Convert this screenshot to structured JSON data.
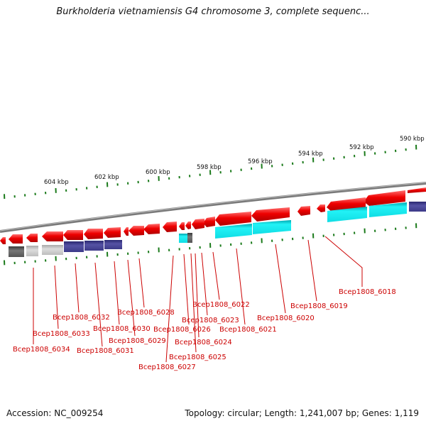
{
  "title": "Burkholderia vietnamiensis G4 chromosome 3, complete sequenc...",
  "footer": {
    "accession": "Accession: NC_009254",
    "stats": "Topology: circular; Length: 1,241,007 bp; Genes: 1,119"
  },
  "scale_labels": [
    "604 kbp",
    "602 kbp",
    "600 kbp",
    "598 kbp",
    "596 kbp",
    "594 kbp",
    "592 kbp",
    "590 kbp"
  ],
  "gene_labels": [
    "Bcep1808_6018",
    "Bcep1808_6019",
    "Bcep1808_6020",
    "Bcep1808_6021",
    "Bcep1808_6022",
    "Bcep1808_6023",
    "Bcep1808_6024",
    "Bcep1808_6025",
    "Bcep1808_6026",
    "Bcep1808_6027",
    "Bcep1808_6028",
    "Bcep1808_6029",
    "Bcep1808_6030",
    "Bcep1808_6031",
    "Bcep1808_6032",
    "Bcep1808_6033",
    "Bcep1808_6034"
  ],
  "colors": {
    "forward_gene": "#e80000",
    "label_line": "#cc0000",
    "tick": "#1a7a1a",
    "backbone": "#808080",
    "feature_cyan": "#11e8ee",
    "feature_navy": "#4a4694",
    "feature_gray_dark": "#606060",
    "feature_gray_light": "#c4c4c4"
  }
}
